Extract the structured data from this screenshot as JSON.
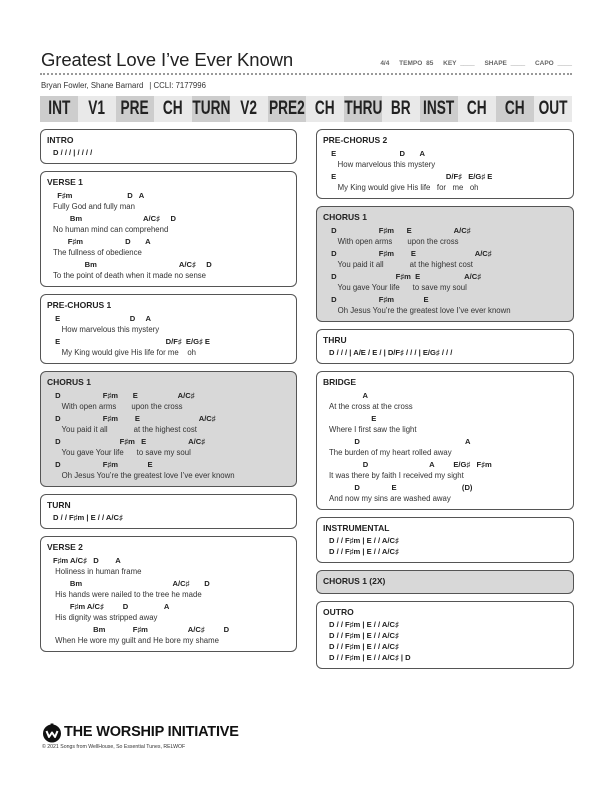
{
  "header": {
    "title": "Greatest Love I’ve Ever Known",
    "time_signature": "4/4",
    "tempo": "TEMPO 85",
    "key": "KEY ____",
    "shape": "SHAPE ____",
    "capo": "CAPO ____",
    "authors": "Bryan Fowler, Shane Barnard",
    "ccli": "| CCLI: 7177996"
  },
  "roadmap": [
    "INT",
    "V1",
    "PRE",
    "CH",
    "TURN",
    "V2",
    "PRE2",
    "CH",
    "THRU",
    "BR",
    "INST",
    "CH",
    "CH",
    "OUT"
  ],
  "left": [
    {
      "title": "INTRO",
      "gray": false,
      "progression": [
        "D / / / | / / / /"
      ]
    },
    {
      "title": "VERSE 1",
      "gray": false,
      "lines": [
        {
          "chords": "  F♯m                          D   A",
          "lyric": "Fully God and fully man"
        },
        {
          "chords": "        Bm                             A/C♯     D",
          "lyric": "No human mind can comprehend"
        },
        {
          "chords": "       F♯m                    D       A",
          "lyric": "The fullness of obedience"
        },
        {
          "chords": "               Bm                                       A/C♯     D",
          "lyric": "To the point of death when it made no sense"
        }
      ]
    },
    {
      "title": "PRE-CHORUS 1",
      "gray": false,
      "lines": [
        {
          "chords": " E                                 D     A",
          "lyric": "    How marvelous this mystery"
        },
        {
          "chords": " E                                                  D/F♯  E/G♯ E",
          "lyric": "    My King would give His life for me    oh"
        }
      ]
    },
    {
      "title": "CHORUS 1",
      "gray": true,
      "lines": [
        {
          "chords": " D                    F♯m       E                   A/C♯",
          "lyric": "    With open arms       upon the cross"
        },
        {
          "chords": " D                    F♯m        E                            A/C♯",
          "lyric": "    You paid it all            at the highest cost"
        },
        {
          "chords": " D                            F♯m   E                    A/C♯",
          "lyric": "    You gave Your life      to save my soul"
        },
        {
          "chords": " D                    F♯m              E",
          "lyric": "    Oh Jesus You’re the greatest love I’ve ever known"
        }
      ]
    },
    {
      "title": "TURN",
      "gray": false,
      "progression": [
        "D / / F♯m | E / / A/C♯"
      ]
    },
    {
      "title": "VERSE 2",
      "gray": false,
      "lines": [
        {
          "chords": "F♯m A/C♯   D        A",
          "lyric": " Holiness in human frame"
        },
        {
          "chords": "        Bm                                           A/C♯       D",
          "lyric": " His hands were nailed to the tree he made"
        },
        {
          "chords": "        F♯m A/C♯         D                 A",
          "lyric": " His dignity was stripped away"
        },
        {
          "chords": "                   Bm             F♯m                   A/C♯         D",
          "lyric": " When He wore my guilt and He bore my shame"
        }
      ]
    }
  ],
  "right": [
    {
      "title": "PRE-CHORUS 2",
      "gray": false,
      "lines": [
        {
          "chords": " E                              D       A",
          "lyric": "    How marvelous this mystery"
        },
        {
          "chords": " E                                                    D/F♯   E/G♯ E",
          "lyric": "    My King would give His life   for   me   oh"
        }
      ]
    },
    {
      "title": "CHORUS 1",
      "gray": true,
      "lines": [
        {
          "chords": " D                    F♯m      E                    A/C♯",
          "lyric": "    With open arms       upon the cross"
        },
        {
          "chords": " D                    F♯m        E                            A/C♯",
          "lyric": "    You paid it all            at the highest cost"
        },
        {
          "chords": " D                            F♯m  E                     A/C♯",
          "lyric": "    You gave Your life      to save my soul"
        },
        {
          "chords": " D                    F♯m              E",
          "lyric": "    Oh Jesus You’re the greatest love I’ve ever known"
        }
      ]
    },
    {
      "title": "THRU",
      "gray": false,
      "progression": [
        "D / / / | A/E / E / | D/F♯ / / / | E/G♯ / / /"
      ]
    },
    {
      "title": "BRIDGE",
      "gray": false,
      "lines": [
        {
          "chords": "                A",
          "lyric": "At the cross at the cross"
        },
        {
          "chords": "                    E",
          "lyric": "Where I first saw the light"
        },
        {
          "chords": "            D                                                  A",
          "lyric": "The burden of my heart rolled away"
        },
        {
          "chords": "                D                             A         E/G♯   F♯m",
          "lyric": "It was there by faith I received my sight"
        },
        {
          "chords": "            D               E                               (D)",
          "lyric": "And now my sins are washed away"
        }
      ]
    },
    {
      "title": "INSTRUMENTAL",
      "gray": false,
      "progression": [
        "D / / F♯m | E / / A/C♯",
        "D / / F♯m | E / / A/C♯"
      ]
    },
    {
      "title": "CHORUS 1 (2X)",
      "gray": true,
      "progression": []
    },
    {
      "title": "OUTRO",
      "gray": false,
      "progression": [
        "D / / F♯m | E / / A/C♯",
        "D / / F♯m | E / / A/C♯",
        "D / / F♯m | E / / A/C♯",
        "D / / F♯m | E / / A/C♯ | D"
      ]
    }
  ],
  "footer": {
    "brand": "THE WORSHIP INITIATIVE",
    "logo_icon": "worship-initiative-logo-icon",
    "copyright": "© 2021 Songs from WellHouse, So Essential Tunes, RELWOF"
  },
  "colors": {
    "section_gray": "#d8d8d8",
    "roadmap_dark": "#cdcdcd",
    "roadmap_light": "#e9e9e9",
    "border": "#555555"
  }
}
